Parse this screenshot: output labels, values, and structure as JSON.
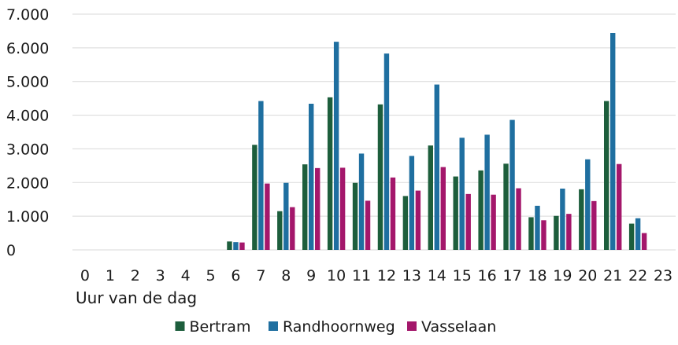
{
  "chart_data": {
    "type": "bar",
    "xlabel": "Uur van de dag",
    "ylabel": "",
    "ylim": [
      0,
      7000
    ],
    "yticks": [
      0,
      1000,
      2000,
      3000,
      4000,
      5000,
      6000,
      7000
    ],
    "ytick_labels": [
      "0",
      "1.000",
      "2.000",
      "3.000",
      "4.000",
      "5.000",
      "6.000",
      "7.000"
    ],
    "categories": [
      "0",
      "1",
      "2",
      "3",
      "4",
      "5",
      "6",
      "7",
      "8",
      "9",
      "10",
      "11",
      "12",
      "13",
      "14",
      "15",
      "16",
      "17",
      "18",
      "19",
      "20",
      "21",
      "22",
      "23"
    ],
    "grid": true,
    "legend_position": "bottom",
    "series": [
      {
        "name": "Bertram",
        "color": "#1d5e3c",
        "values": [
          0,
          0,
          0,
          0,
          0,
          0,
          250,
          3120,
          1150,
          2540,
          4530,
          1990,
          4320,
          1600,
          3100,
          2180,
          2360,
          2560,
          970,
          1010,
          1800,
          4420,
          780,
          0
        ]
      },
      {
        "name": "Randhoornweg",
        "color": "#1f6fa0",
        "values": [
          0,
          0,
          0,
          0,
          0,
          0,
          230,
          4420,
          1990,
          4340,
          6180,
          2860,
          5830,
          2790,
          4910,
          3330,
          3420,
          3860,
          1310,
          1820,
          2690,
          6440,
          940,
          0
        ]
      },
      {
        "name": "Vasselaan",
        "color": "#a4176b",
        "values": [
          0,
          0,
          0,
          0,
          0,
          0,
          220,
          1970,
          1270,
          2430,
          2440,
          1460,
          2150,
          1760,
          2460,
          1660,
          1640,
          1830,
          880,
          1070,
          1450,
          2550,
          500,
          0
        ]
      }
    ]
  }
}
